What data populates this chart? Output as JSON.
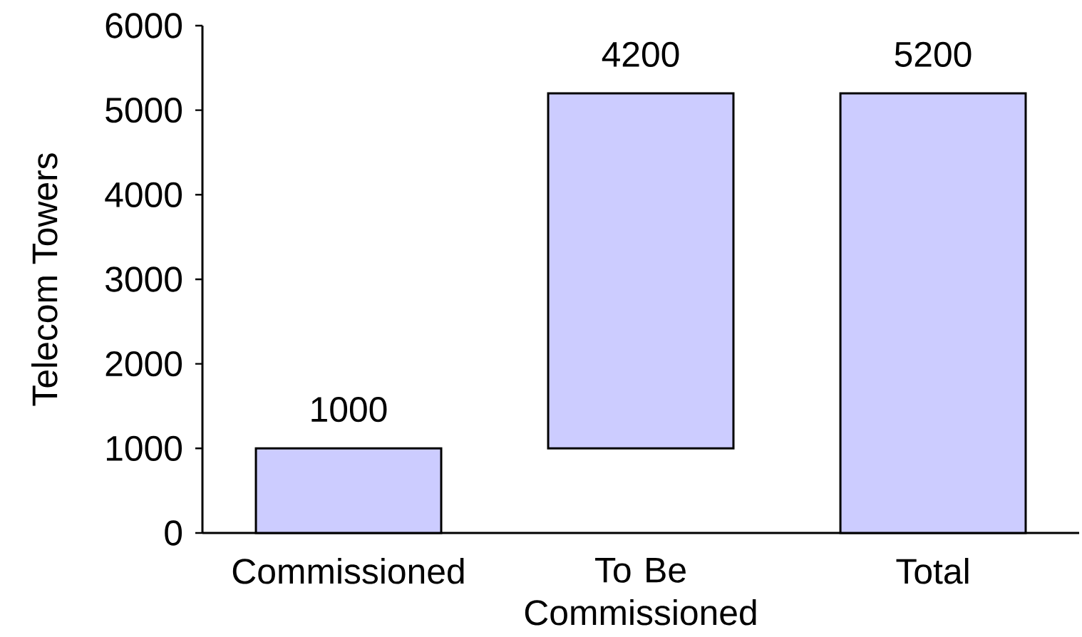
{
  "chart_data": {
    "type": "bar",
    "ylabel": "Telecom Towers",
    "categories": [
      "Commissioned",
      "To Be Commissioned",
      "Total"
    ],
    "values": [
      1000,
      4200,
      5200
    ],
    "base": [
      0,
      1000,
      0
    ],
    "color": "#ccccff",
    "data_labels": true,
    "ylim": [
      0,
      6000
    ],
    "yticks": [
      0,
      1000,
      2000,
      3000,
      4000,
      5000,
      6000
    ],
    "grid": false
  }
}
